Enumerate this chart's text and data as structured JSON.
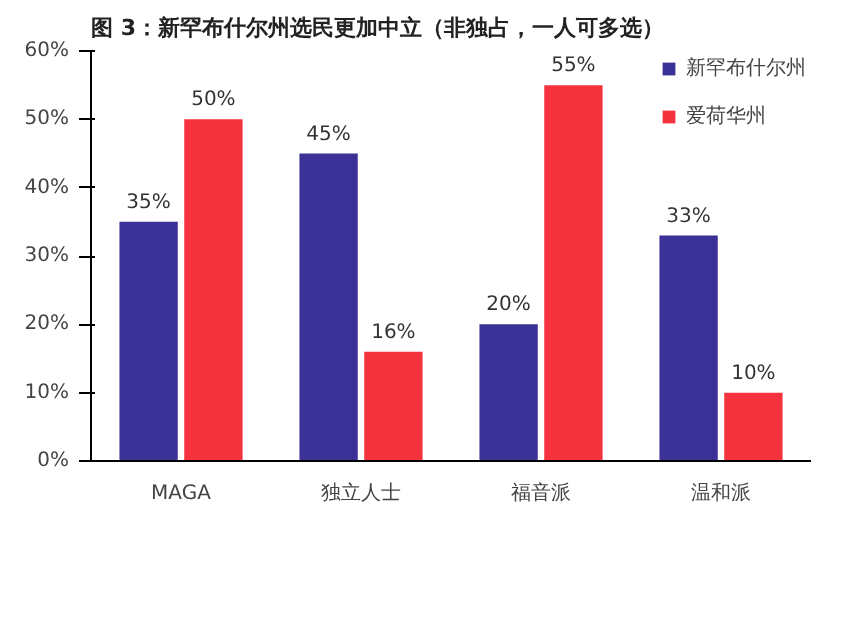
{
  "chart_data": {
    "type": "bar",
    "title": "图 3：新罕布什尔州选民更加中立（非独占，一人可多选）",
    "categories": [
      "MAGA",
      "独立人士",
      "福音派",
      "温和派"
    ],
    "series": [
      {
        "name": "新罕布什尔州",
        "color": "#3c3196",
        "values": [
          35,
          45,
          20,
          33
        ],
        "value_labels": [
          "35%",
          "45%",
          "20%",
          "33%"
        ]
      },
      {
        "name": "爱荷华州",
        "color": "#f5333f",
        "values": [
          50,
          16,
          55,
          10
        ],
        "value_labels": [
          "50%",
          "16%",
          "55%",
          "10%"
        ]
      }
    ],
    "ylim": [
      0,
      60
    ],
    "yticks": [
      {
        "value": 0,
        "label": "0%"
      },
      {
        "value": 10,
        "label": "10%"
      },
      {
        "value": 20,
        "label": "20%"
      },
      {
        "value": 30,
        "label": "30%"
      },
      {
        "value": 40,
        "label": "40%"
      },
      {
        "value": 50,
        "label": "50%"
      },
      {
        "value": 60,
        "label": "60%"
      }
    ],
    "grid": false,
    "legend": "top right"
  }
}
